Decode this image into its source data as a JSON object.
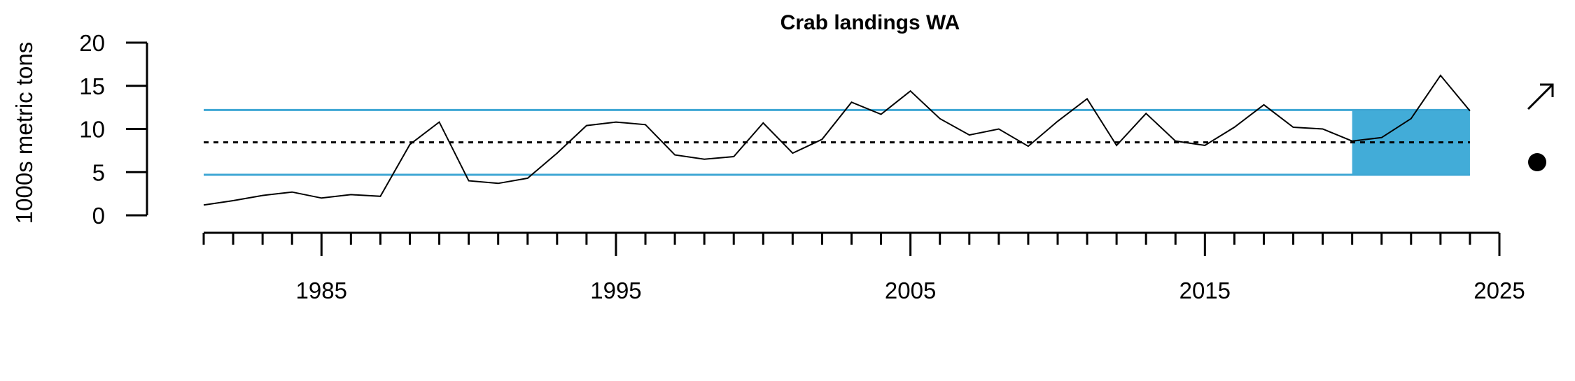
{
  "chart_data": {
    "type": "line",
    "title": "Crab landings WA",
    "xlabel": "",
    "ylabel": "1000s metric tons",
    "xlim": [
      1981,
      2025
    ],
    "ylim": [
      0,
      20
    ],
    "x_tick_labels": [
      "1985",
      "1995",
      "2005",
      "2015",
      "2025"
    ],
    "x_ticks": [
      1985,
      1995,
      2005,
      2015,
      2025
    ],
    "y_tick_labels": [
      "0",
      "5",
      "10",
      "15",
      "20"
    ],
    "y_ticks": [
      0,
      5,
      10,
      15,
      20
    ],
    "grid": false,
    "legend": "none",
    "series": [
      {
        "x": [
          1981,
          1982,
          1983,
          1984,
          1985,
          1986,
          1987,
          1988,
          1989,
          1990,
          1991,
          1992,
          1993,
          1994,
          1995,
          1996,
          1997,
          1998,
          1999,
          2000,
          2001,
          2002,
          2003,
          2004,
          2005,
          2006,
          2007,
          2008,
          2009,
          2010,
          2011,
          2012,
          2013,
          2014,
          2015,
          2016,
          2017,
          2018,
          2019,
          2020,
          2021,
          2022,
          2023,
          2024
        ],
        "values": [
          1.2,
          1.7,
          2.3,
          2.7,
          2.0,
          2.4,
          2.2,
          8.2,
          10.8,
          4.0,
          3.7,
          4.3,
          7.2,
          10.4,
          10.8,
          10.5,
          7.0,
          6.5,
          6.8,
          10.7,
          7.2,
          8.8,
          13.1,
          11.7,
          14.4,
          11.2,
          9.3,
          10.0,
          8.0,
          10.9,
          13.5,
          8.1,
          11.8,
          8.6,
          8.1,
          10.2,
          12.8,
          10.2,
          10.0,
          8.6,
          9.0,
          11.2,
          16.2,
          12.1
        ],
        "color": "#000000"
      }
    ],
    "mean": 8.45,
    "mean_plus_sd": 12.2,
    "mean_minus_sd": 4.7,
    "recent_window": [
      2020,
      2024
    ],
    "colors": {
      "sd_lines": "#3fa7d4",
      "recent_fill": "#42acd8",
      "mean_line": "#000000",
      "line": "#000000"
    },
    "trend_indicator": "arrow-up-right-icon",
    "mean_indicator": "filled-circle-icon"
  }
}
